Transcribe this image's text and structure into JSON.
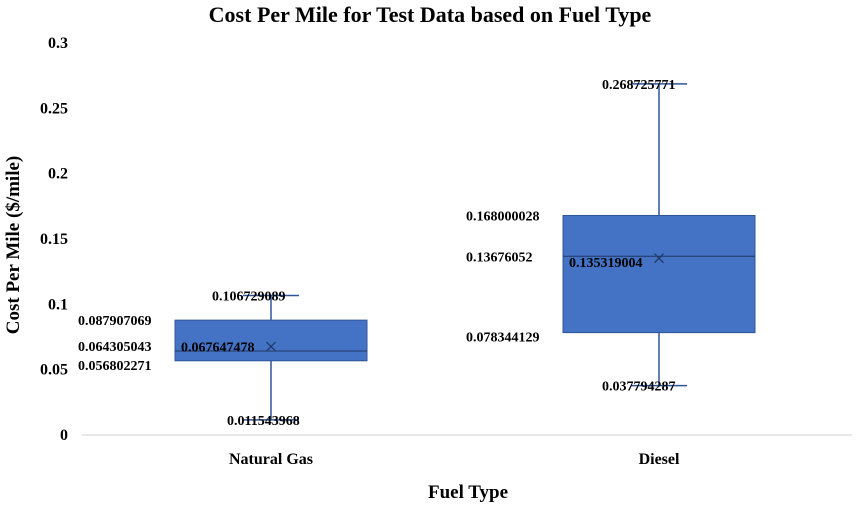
{
  "chart_data": {
    "type": "box",
    "title": "Cost Per Mile for Test Data based on Fuel Type",
    "xlabel": "Fuel Type",
    "ylabel": "Cost Per Mile ($/mile)",
    "ylim": [
      0,
      0.3
    ],
    "yticks": [
      "0",
      "0.05",
      "0.1",
      "0.15",
      "0.2",
      "0.25",
      "0.3"
    ],
    "ytick_values": [
      0,
      0.05,
      0.1,
      0.15,
      0.2,
      0.25,
      0.3
    ],
    "grid": false,
    "box_color": "#4472C4",
    "box_edge_color": "#2F5597",
    "series": [
      {
        "category": "Natural Gas",
        "min": 0.011543968,
        "q1": 0.056802271,
        "median": 0.064305043,
        "q3": 0.087907069,
        "max": 0.106729089,
        "mean": 0.067647478,
        "labels": {
          "min": "0.011543968",
          "q1": "0.056802271",
          "median": "0.064305043",
          "q3": "0.087907069",
          "max": "0.106729089",
          "mean": "0.067647478"
        }
      },
      {
        "category": "Diesel",
        "min": 0.037794287,
        "q1": 0.078344129,
        "median": 0.13676052,
        "q3": 0.168000028,
        "max": 0.268725771,
        "mean": 0.135319004,
        "labels": {
          "min": "0.037794287",
          "q1": "0.078344129",
          "median": "0.13676052",
          "q3": "0.168000028",
          "max": "0.268725771",
          "mean": "0.135319004"
        }
      }
    ]
  }
}
